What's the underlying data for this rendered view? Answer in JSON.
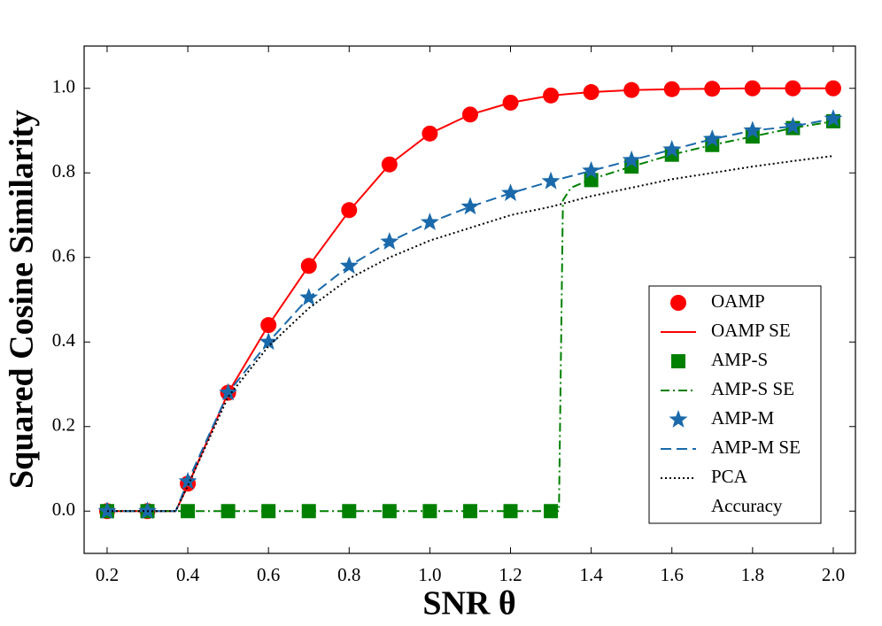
{
  "chart_data": {
    "type": "line",
    "xlabel": "SNR θ",
    "ylabel": "Squared Cosine Similarity",
    "xlim": [
      0.143,
      2.055
    ],
    "ylim": [
      -0.1,
      1.1
    ],
    "xticks": [
      0.2,
      0.4,
      0.6,
      0.8,
      {
        "value": 1.0,
        "label": "1.0"
      },
      1.2,
      1.4,
      1.6,
      1.8,
      {
        "value": 2.0,
        "label": "2.0"
      }
    ],
    "yticks": [
      {
        "value": 0,
        "label": "0.0"
      },
      0.2,
      0.4,
      0.6,
      0.8,
      {
        "value": 1.0,
        "label": "1.0"
      }
    ],
    "legend": "lower right",
    "series": [
      {
        "name": "OAMP",
        "color": "#ff0000",
        "marker": "circle",
        "linestyle": "none",
        "x": [
          0.2,
          0.3,
          0.4,
          0.5,
          0.6,
          0.7,
          0.8,
          0.9,
          1.0,
          1.1,
          1.2,
          1.3,
          1.4,
          1.5,
          1.6,
          1.7,
          1.8,
          1.9,
          2.0
        ],
        "values": [
          0,
          0,
          0.065,
          0.28,
          0.44,
          0.58,
          0.712,
          0.82,
          0.893,
          0.938,
          0.966,
          0.983,
          0.991,
          0.996,
          0.998,
          0.999,
          1.0,
          1.0,
          1.0
        ]
      },
      {
        "name": "OAMP SE",
        "color": "#ff0000",
        "marker": "none",
        "linestyle": "solid",
        "x": [
          0.2,
          0.3,
          0.37,
          0.4,
          0.5,
          0.6,
          0.7,
          0.8,
          0.9,
          1.0,
          1.1,
          1.2,
          1.3,
          1.4,
          1.5,
          1.6,
          1.7,
          1.8,
          1.9,
          2.0
        ],
        "values": [
          0,
          0,
          0,
          0.06,
          0.28,
          0.44,
          0.58,
          0.71,
          0.82,
          0.893,
          0.938,
          0.966,
          0.983,
          0.991,
          0.996,
          0.998,
          0.999,
          1.0,
          1.0,
          1.0
        ]
      },
      {
        "name": "AMP-S",
        "color": "#008000",
        "marker": "square",
        "linestyle": "none",
        "x": [
          0.2,
          0.3,
          0.4,
          0.5,
          0.6,
          0.7,
          0.8,
          0.9,
          1.0,
          1.1,
          1.2,
          1.3,
          1.4,
          1.5,
          1.6,
          1.7,
          1.8,
          1.9,
          2.0
        ],
        "values": [
          0,
          0,
          0,
          0,
          0,
          0,
          0,
          0,
          0,
          0,
          0,
          0,
          0.783,
          0.815,
          0.843,
          0.866,
          0.886,
          0.906,
          0.922
        ]
      },
      {
        "name": "AMP-S SE",
        "color": "#008000",
        "marker": "none",
        "linestyle": "dashdot",
        "x": [
          0.2,
          0.3,
          0.4,
          0.5,
          0.6,
          0.7,
          0.8,
          0.9,
          1.0,
          1.1,
          1.2,
          1.3,
          1.32,
          1.33,
          1.35,
          1.4,
          1.5,
          1.6,
          1.7,
          1.8,
          1.9,
          2.0
        ],
        "values": [
          0,
          0,
          0,
          0,
          0,
          0,
          0,
          0,
          0,
          0,
          0,
          0,
          0,
          0.735,
          0.765,
          0.785,
          0.815,
          0.843,
          0.866,
          0.886,
          0.906,
          0.922
        ]
      },
      {
        "name": "AMP-M",
        "color": "#1a6aab",
        "marker": "star",
        "linestyle": "none",
        "x": [
          0.2,
          0.3,
          0.4,
          0.5,
          0.6,
          0.7,
          0.8,
          0.9,
          1.0,
          1.1,
          1.2,
          1.3,
          1.4,
          1.5,
          1.6,
          1.7,
          1.8,
          1.9,
          2.0
        ],
        "values": [
          0,
          0,
          0.07,
          0.28,
          0.4,
          0.505,
          0.58,
          0.637,
          0.683,
          0.72,
          0.752,
          0.78,
          0.805,
          0.83,
          0.855,
          0.88,
          0.9,
          0.91,
          0.928
        ]
      },
      {
        "name": "AMP-M SE",
        "color": "#1a6aab",
        "marker": "none",
        "linestyle": "dashed",
        "x": [
          0.2,
          0.3,
          0.37,
          0.4,
          0.5,
          0.6,
          0.7,
          0.8,
          0.9,
          1.0,
          1.1,
          1.2,
          1.3,
          1.4,
          1.5,
          1.6,
          1.7,
          1.8,
          1.9,
          2.0
        ],
        "values": [
          0,
          0,
          0,
          0.07,
          0.28,
          0.4,
          0.505,
          0.58,
          0.637,
          0.683,
          0.72,
          0.752,
          0.78,
          0.805,
          0.83,
          0.855,
          0.88,
          0.9,
          0.91,
          0.928
        ]
      },
      {
        "name": "PCA\nAccuracy",
        "color": "#000000",
        "marker": "none",
        "linestyle": "dotted",
        "x": [
          0.2,
          0.3,
          0.37,
          0.4,
          0.5,
          0.6,
          0.7,
          0.8,
          0.9,
          1.0,
          1.1,
          1.2,
          1.3,
          1.4,
          1.5,
          1.6,
          1.7,
          1.8,
          1.9,
          2.0
        ],
        "values": [
          0,
          0,
          0,
          0.06,
          0.27,
          0.39,
          0.48,
          0.55,
          0.6,
          0.64,
          0.67,
          0.7,
          0.72,
          0.745,
          0.765,
          0.785,
          0.8,
          0.815,
          0.828,
          0.84
        ]
      }
    ]
  }
}
